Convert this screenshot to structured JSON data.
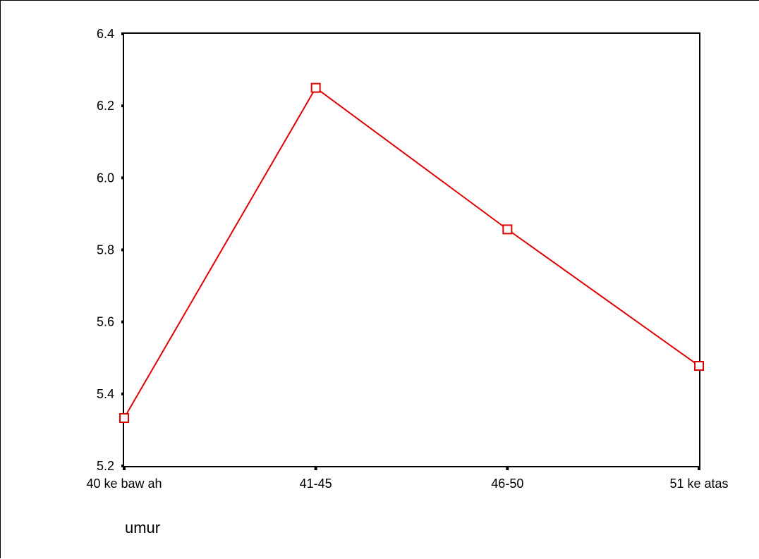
{
  "chart_data": {
    "type": "line",
    "categories": [
      "40 ke baw ah",
      "41-45",
      "46-50",
      "51 ke atas"
    ],
    "series": [
      {
        "values": [
          5.333,
          6.25,
          5.857,
          5.478
        ],
        "color": "#e00000",
        "marker": "square"
      }
    ],
    "title": "",
    "xlabel": "umur",
    "ylabel": "",
    "ylim": [
      5.2,
      6.4
    ],
    "yticks": [
      "5.2",
      "5.4",
      "5.6",
      "5.8",
      "6.0",
      "6.2",
      "6.4"
    ],
    "grid": false,
    "legend": "none"
  }
}
